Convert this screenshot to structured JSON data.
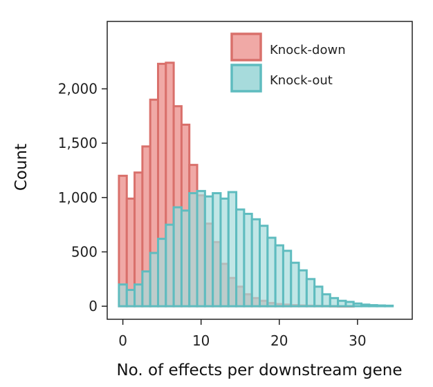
{
  "chart_data": {
    "type": "histogram",
    "xlabel": "No. of effects per downstream gene",
    "ylabel": "Count",
    "xlim": [
      -2,
      37
    ],
    "ylim": [
      -120,
      2620
    ],
    "xticks": [
      0,
      10,
      20,
      30
    ],
    "yticks": [
      0,
      500,
      1000,
      1500,
      2000
    ],
    "ytick_labels": [
      "0",
      "500",
      "1,000",
      "1,500",
      "2,000"
    ],
    "bin_start": -0.5,
    "bin_width": 1,
    "legend": {
      "position": "top-right",
      "entries": [
        "Knock-down",
        "Knock-out"
      ]
    },
    "series": [
      {
        "name": "Knock-down",
        "color_fill": "#f0a9a6",
        "color_edge": "#d9706b",
        "values": [
          1200,
          990,
          1230,
          1470,
          1900,
          2230,
          2240,
          1840,
          1670,
          1300,
          1020,
          760,
          590,
          390,
          260,
          180,
          110,
          75,
          50,
          30,
          20,
          15,
          10,
          7,
          5,
          4,
          3,
          2,
          1,
          1,
          0,
          0,
          0,
          0,
          0
        ]
      },
      {
        "name": "Knock-out",
        "color_fill": "#a7dbdc",
        "color_edge": "#5fbcbf",
        "values": [
          200,
          150,
          200,
          320,
          490,
          620,
          750,
          910,
          880,
          1040,
          1060,
          1010,
          1040,
          990,
          1050,
          890,
          850,
          800,
          740,
          630,
          560,
          510,
          400,
          330,
          250,
          180,
          110,
          75,
          50,
          40,
          25,
          15,
          10,
          7,
          5
        ]
      }
    ]
  }
}
